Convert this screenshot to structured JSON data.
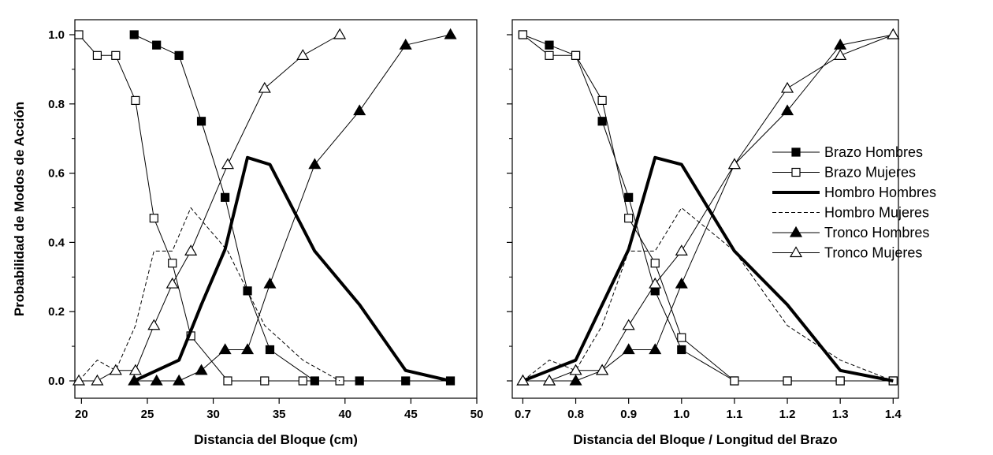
{
  "chart_data": [
    {
      "type": "line",
      "xlabel": "Distancia del Bloque (cm)",
      "ylabel": "Probabilidad de Modos de Acción",
      "xlim": [
        19.5,
        50
      ],
      "ylim": [
        0,
        1.0
      ],
      "xticks": [
        "20",
        "25",
        "30",
        "35",
        "40",
        "45",
        "50"
      ],
      "yticks": [
        "0.0",
        "0.2",
        "0.4",
        "0.6",
        "0.8",
        "1.0"
      ],
      "series": [
        {
          "name": "Brazo Hombres",
          "style": "filled-square",
          "x": [
            24,
            25.7,
            27.4,
            29.1,
            30.9,
            32.6,
            34.3,
            37.7,
            41.1,
            44.6,
            48.0
          ],
          "y": [
            1.0,
            0.97,
            0.94,
            0.75,
            0.53,
            0.26,
            0.09,
            0.0,
            0.0,
            0.0,
            0.0
          ]
        },
        {
          "name": "Brazo Mujeres",
          "style": "open-square",
          "x": [
            19.8,
            21.2,
            22.6,
            24.1,
            25.5,
            26.9,
            28.3,
            31.1,
            33.9,
            36.8,
            39.6
          ],
          "y": [
            1.0,
            0.94,
            0.94,
            0.81,
            0.47,
            0.34,
            0.13,
            0.0,
            0.0,
            0.0,
            0.0
          ]
        },
        {
          "name": "Hombro Hombres",
          "style": "thick",
          "x": [
            24,
            25.7,
            27.4,
            29.1,
            30.9,
            32.6,
            34.3,
            37.7,
            41.1,
            44.6,
            48.0
          ],
          "y": [
            0.0,
            0.03,
            0.06,
            0.22,
            0.38,
            0.645,
            0.625,
            0.375,
            0.22,
            0.03,
            0.0
          ]
        },
        {
          "name": "Hombro Mujeres",
          "style": "dashed",
          "x": [
            19.8,
            21.2,
            22.6,
            24.1,
            25.5,
            26.9,
            28.3,
            31.1,
            33.9,
            36.8,
            39.6
          ],
          "y": [
            0.0,
            0.06,
            0.03,
            0.16,
            0.375,
            0.375,
            0.5,
            0.375,
            0.16,
            0.06,
            0.0
          ]
        },
        {
          "name": "Tronco Hombres",
          "style": "filled-triangle",
          "x": [
            24,
            25.7,
            27.4,
            29.1,
            30.9,
            32.6,
            34.3,
            37.7,
            41.1,
            44.6,
            48.0
          ],
          "y": [
            0.0,
            0.0,
            0.0,
            0.03,
            0.09,
            0.09,
            0.28,
            0.625,
            0.78,
            0.97,
            1.0
          ]
        },
        {
          "name": "Tronco Mujeres",
          "style": "open-triangle",
          "x": [
            19.8,
            21.2,
            22.6,
            24.1,
            25.5,
            26.9,
            28.3,
            31.1,
            33.9,
            36.8,
            39.6
          ],
          "y": [
            0.0,
            0.0,
            0.03,
            0.03,
            0.16,
            0.28,
            0.375,
            0.625,
            0.845,
            0.94,
            1.0
          ]
        }
      ]
    },
    {
      "type": "line",
      "xlabel": "Distancia del Bloque / Longitud del Brazo",
      "ylabel": "",
      "xlim": [
        0.68,
        1.41
      ],
      "ylim": [
        0,
        1.0
      ],
      "xticks": [
        "0.7",
        "0.8",
        "0.9",
        "1.0",
        "1.1",
        "1.2",
        "1.3",
        "1.4"
      ],
      "yticks": [],
      "series": [
        {
          "name": "Brazo Hombres",
          "style": "filled-square",
          "x": [
            0.7,
            0.75,
            0.8,
            0.85,
            0.9,
            0.95,
            1.0,
            1.1,
            1.2,
            1.3,
            1.4
          ],
          "y": [
            1.0,
            0.97,
            0.94,
            0.75,
            0.53,
            0.26,
            0.09,
            0.0,
            0.0,
            0.0,
            0.0
          ]
        },
        {
          "name": "Brazo Mujeres",
          "style": "open-square",
          "x": [
            0.7,
            0.75,
            0.8,
            0.85,
            0.9,
            0.95,
            1.0,
            1.1,
            1.2,
            1.3,
            1.4
          ],
          "y": [
            1.0,
            0.94,
            0.94,
            0.81,
            0.47,
            0.34,
            0.125,
            0.0,
            0.0,
            0.0,
            0.0
          ]
        },
        {
          "name": "Hombro Hombres",
          "style": "thick",
          "x": [
            0.7,
            0.75,
            0.8,
            0.85,
            0.9,
            0.95,
            1.0,
            1.1,
            1.2,
            1.3,
            1.4
          ],
          "y": [
            0.0,
            0.03,
            0.06,
            0.22,
            0.38,
            0.645,
            0.625,
            0.375,
            0.22,
            0.03,
            0.0
          ]
        },
        {
          "name": "Hombro Mujeres",
          "style": "dashed",
          "x": [
            0.7,
            0.75,
            0.8,
            0.85,
            0.9,
            0.95,
            1.0,
            1.1,
            1.2,
            1.3,
            1.4
          ],
          "y": [
            0.0,
            0.06,
            0.03,
            0.16,
            0.375,
            0.375,
            0.5,
            0.375,
            0.16,
            0.06,
            0.0
          ]
        },
        {
          "name": "Tronco Hombres",
          "style": "filled-triangle",
          "x": [
            0.7,
            0.75,
            0.8,
            0.85,
            0.9,
            0.95,
            1.0,
            1.1,
            1.2,
            1.3,
            1.4
          ],
          "y": [
            0.0,
            0.0,
            0.0,
            0.03,
            0.09,
            0.09,
            0.28,
            0.625,
            0.78,
            0.97,
            1.0
          ]
        },
        {
          "name": "Tronco Mujeres",
          "style": "open-triangle",
          "x": [
            0.7,
            0.75,
            0.8,
            0.85,
            0.9,
            0.95,
            1.0,
            1.1,
            1.2,
            1.3,
            1.4
          ],
          "y": [
            0.0,
            0.0,
            0.03,
            0.03,
            0.16,
            0.28,
            0.375,
            0.625,
            0.845,
            0.94,
            1.0
          ]
        }
      ]
    }
  ],
  "legend": {
    "placement": "right",
    "entries": [
      {
        "label": "Brazo Hombres",
        "style": "filled-square"
      },
      {
        "label": "Brazo Mujeres",
        "style": "open-square"
      },
      {
        "label": "Hombro Hombres",
        "style": "thick"
      },
      {
        "label": "Hombro Mujeres",
        "style": "dashed"
      },
      {
        "label": "Tronco Hombres",
        "style": "filled-triangle"
      },
      {
        "label": "Tronco Mujeres",
        "style": "open-triangle"
      }
    ]
  }
}
